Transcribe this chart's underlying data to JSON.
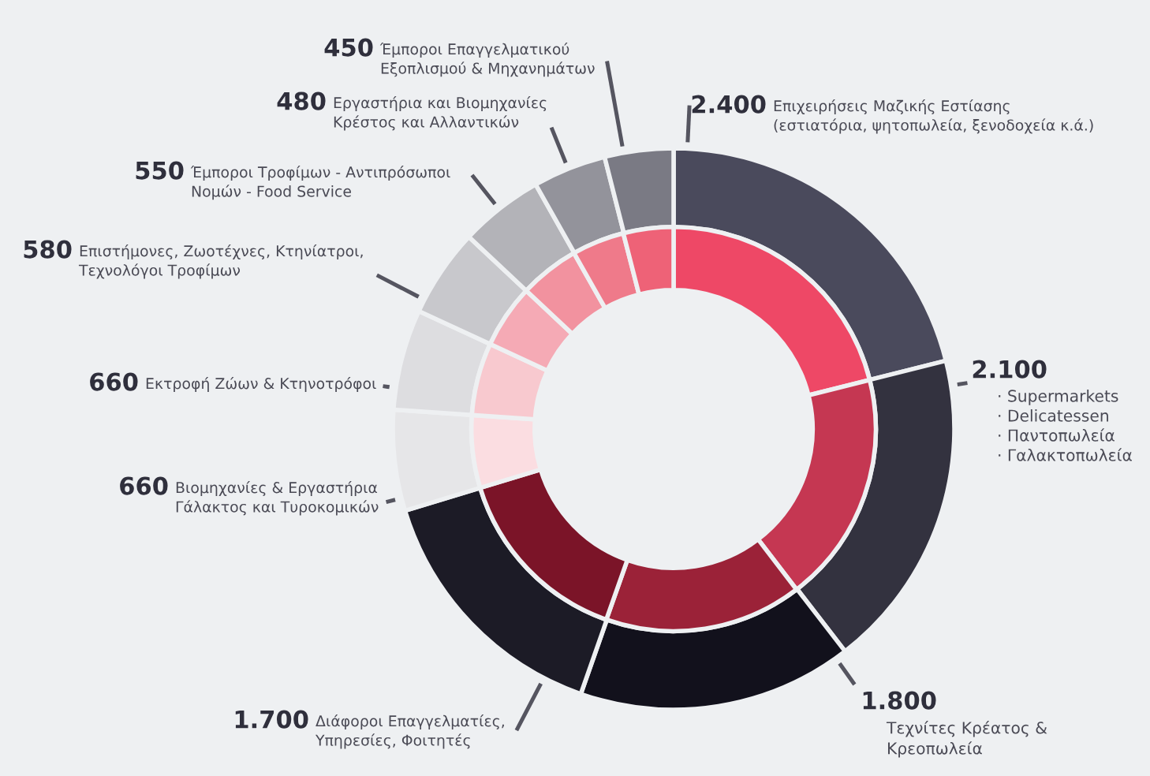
{
  "chart_data": {
    "type": "donut",
    "categories": [
      "Επιχειρήσεις Μαζικής Εστίασης\n(εστιατόρια, ψητοπωλεία, ξενοδοχεία κ.ά.)",
      "· Supermarkets\n· Delicatessen\n· Παντοπωλεία\n· Γαλακτοπωλεία",
      "Τεχνίτες Κρέατος &\nΚρεοπωλεία",
      "Διάφοροι Επαγγελματίες,\nΥπηρεσίες, Φοιτητές",
      "Εκτροφή Ζώων & Κτηνοτρόφοι",
      "Βιομηχανίες & Εργαστήρια\nΓάλακτος και Τυροκομικών",
      "Επιστήμονες, Ζωοτέχνες, Κτηνίατροι,\nΤεχνολόγοι Τροφίμων",
      "Έμποροι Τροφίμων - Αντιπρόσωποι\nΝομών - Food Service",
      "Εργαστήρια και Βιομηχανίες\nΚρέστος και Αλλαντικών",
      "Έμποροι Επαγγελματικού\nΕξοπλισμού & Μηχανημάτων"
    ],
    "series": [
      {
        "values": [
          2400,
          2100,
          1800,
          1700,
          660,
          660,
          580,
          550,
          480,
          450
        ],
        "value_labels": [
          "2.400",
          "2.100",
          "1.800",
          "1.700",
          "660",
          "660",
          "580",
          "550",
          "480",
          "450"
        ],
        "colors": [
          "#4a4a5c",
          "#33323f",
          "#12111c",
          "#1c1b26",
          "#e6e6e8",
          "#dddde0",
          "#c8c8cc",
          "#b3b3b8",
          "#93939b",
          "#7a7a84"
        ]
      },
      {
        "values": [
          21.1,
          18.5,
          15.8,
          14.9,
          5.8,
          5.8,
          5.1,
          4.8,
          4.2,
          4.0
        ],
        "colors": [
          "#ee4866",
          "#c53752",
          "#9b2238",
          "#7b1428",
          "#fbdde1",
          "#f8c9cf",
          "#f5aab5",
          "#f2929f",
          "#ef7a8a",
          "#ee6277"
        ]
      }
    ]
  }
}
